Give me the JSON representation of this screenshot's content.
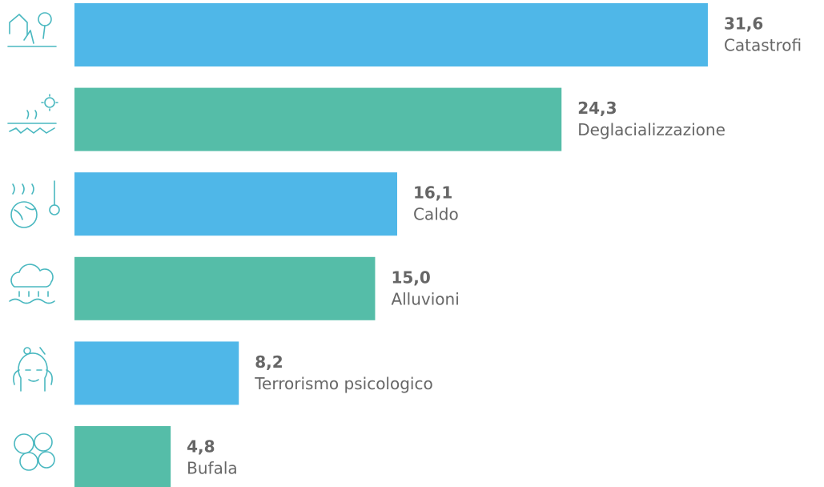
{
  "chart_data": {
    "type": "bar",
    "orientation": "horizontal",
    "categories": [
      "Catastrofi",
      "Deglacializzazione",
      "Caldo",
      "Alluvioni",
      "Terrorismo psicologico",
      "Bufala"
    ],
    "values": [
      31.6,
      24.3,
      16.1,
      15.0,
      8.2,
      4.8
    ],
    "value_labels": [
      "31,6",
      "24,3",
      "16,1",
      "15,0",
      "8,2",
      "4,8"
    ],
    "colors": [
      "#4fb7e8",
      "#55bda8",
      "#4fb7e8",
      "#55bda8",
      "#4fb7e8",
      "#55bda8"
    ]
  }
}
